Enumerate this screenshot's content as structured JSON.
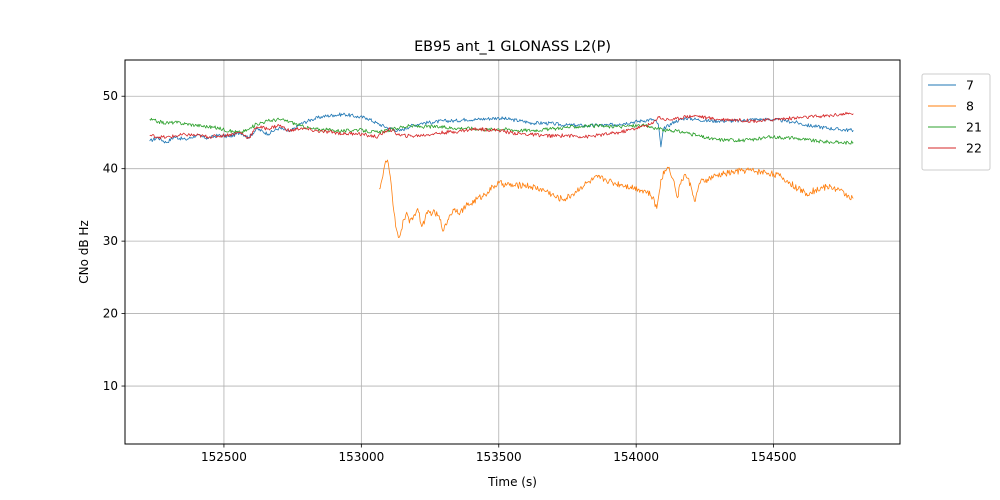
{
  "chart_data": {
    "type": "line",
    "title": "EB95 ant_1 GLONASS L2(P)",
    "xlabel": "Time (s)",
    "ylabel": "CNo dB Hz",
    "xlim": [
      152140,
      154960
    ],
    "ylim": [
      2,
      55
    ],
    "xticks": [
      152500,
      153000,
      153500,
      154000,
      154500
    ],
    "yticks": [
      10,
      20,
      30,
      40,
      50
    ],
    "grid": true,
    "legend_position": "outside top-right",
    "series": [
      {
        "name": "7",
        "color": "#1f77b4",
        "points": [
          [
            152230,
            43.8
          ],
          [
            152260,
            44.3
          ],
          [
            152290,
            43.6
          ],
          [
            152320,
            44.4
          ],
          [
            152360,
            44.0
          ],
          [
            152400,
            44.6
          ],
          [
            152440,
            44.2
          ],
          [
            152480,
            44.6
          ],
          [
            152520,
            44.4
          ],
          [
            152560,
            45.0
          ],
          [
            152590,
            44.3
          ],
          [
            152620,
            45.5
          ],
          [
            152660,
            44.8
          ],
          [
            152700,
            45.6
          ],
          [
            152740,
            45.1
          ],
          [
            152780,
            46.2
          ],
          [
            152820,
            46.8
          ],
          [
            152860,
            47.2
          ],
          [
            152900,
            47.4
          ],
          [
            152940,
            47.5
          ],
          [
            152980,
            47.2
          ],
          [
            153020,
            47.0
          ],
          [
            153060,
            46.2
          ],
          [
            153100,
            45.6
          ],
          [
            153140,
            45.2
          ],
          [
            153180,
            45.9
          ],
          [
            153220,
            46.3
          ],
          [
            153260,
            46.4
          ],
          [
            153300,
            46.6
          ],
          [
            153340,
            46.6
          ],
          [
            153380,
            46.8
          ],
          [
            153420,
            46.8
          ],
          [
            153460,
            46.9
          ],
          [
            153500,
            47.0
          ],
          [
            153540,
            46.8
          ],
          [
            153580,
            46.6
          ],
          [
            153620,
            46.3
          ],
          [
            153660,
            46.3
          ],
          [
            153700,
            46.2
          ],
          [
            153740,
            46.0
          ],
          [
            153780,
            46.0
          ],
          [
            153820,
            45.9
          ],
          [
            153860,
            46.0
          ],
          [
            153900,
            46.0
          ],
          [
            153940,
            46.2
          ],
          [
            153980,
            46.4
          ],
          [
            154020,
            46.6
          ],
          [
            154060,
            46.8
          ],
          [
            154080,
            46.2
          ],
          [
            154090,
            43.0
          ],
          [
            154100,
            45.5
          ],
          [
            154140,
            46.5
          ],
          [
            154180,
            47.0
          ],
          [
            154220,
            46.8
          ],
          [
            154260,
            46.6
          ],
          [
            154300,
            46.6
          ],
          [
            154340,
            46.6
          ],
          [
            154380,
            46.6
          ],
          [
            154420,
            46.8
          ],
          [
            154460,
            46.8
          ],
          [
            154500,
            46.8
          ],
          [
            154540,
            46.6
          ],
          [
            154580,
            46.4
          ],
          [
            154620,
            46.0
          ],
          [
            154660,
            45.8
          ],
          [
            154700,
            45.6
          ],
          [
            154740,
            45.4
          ],
          [
            154790,
            45.3
          ]
        ]
      },
      {
        "name": "8",
        "color": "#ff7f0e",
        "points": [
          [
            153065,
            37.2
          ],
          [
            153075,
            38.5
          ],
          [
            153085,
            40.5
          ],
          [
            153095,
            41.2
          ],
          [
            153105,
            39.0
          ],
          [
            153115,
            35.0
          ],
          [
            153125,
            32.0
          ],
          [
            153135,
            30.5
          ],
          [
            153145,
            31.5
          ],
          [
            153155,
            33.0
          ],
          [
            153165,
            34.0
          ],
          [
            153175,
            32.5
          ],
          [
            153190,
            33.5
          ],
          [
            153205,
            34.5
          ],
          [
            153220,
            32.0
          ],
          [
            153240,
            33.8
          ],
          [
            153260,
            34.0
          ],
          [
            153280,
            33.5
          ],
          [
            153300,
            31.5
          ],
          [
            153320,
            33.5
          ],
          [
            153340,
            34.5
          ],
          [
            153360,
            34.0
          ],
          [
            153380,
            34.8
          ],
          [
            153400,
            35.2
          ],
          [
            153420,
            35.8
          ],
          [
            153440,
            36.2
          ],
          [
            153460,
            36.8
          ],
          [
            153480,
            37.5
          ],
          [
            153500,
            38.0
          ],
          [
            153530,
            37.8
          ],
          [
            153560,
            37.6
          ],
          [
            153590,
            37.8
          ],
          [
            153620,
            37.5
          ],
          [
            153650,
            37.2
          ],
          [
            153680,
            36.8
          ],
          [
            153710,
            36.0
          ],
          [
            153740,
            35.8
          ],
          [
            153770,
            36.5
          ],
          [
            153800,
            37.5
          ],
          [
            153830,
            38.2
          ],
          [
            153860,
            38.8
          ],
          [
            153890,
            38.5
          ],
          [
            153920,
            38.0
          ],
          [
            153950,
            37.8
          ],
          [
            153980,
            37.5
          ],
          [
            154010,
            37.2
          ],
          [
            154040,
            36.8
          ],
          [
            154060,
            36.0
          ],
          [
            154075,
            34.5
          ],
          [
            154090,
            38.5
          ],
          [
            154105,
            39.8
          ],
          [
            154120,
            40.2
          ],
          [
            154135,
            38.5
          ],
          [
            154150,
            36.0
          ],
          [
            154165,
            38.5
          ],
          [
            154180,
            39.2
          ],
          [
            154200,
            37.5
          ],
          [
            154215,
            35.5
          ],
          [
            154230,
            38.0
          ],
          [
            154260,
            38.5
          ],
          [
            154290,
            39.0
          ],
          [
            154320,
            39.3
          ],
          [
            154350,
            39.5
          ],
          [
            154380,
            39.7
          ],
          [
            154410,
            39.8
          ],
          [
            154440,
            39.6
          ],
          [
            154470,
            39.5
          ],
          [
            154500,
            39.3
          ],
          [
            154530,
            38.8
          ],
          [
            154560,
            38.0
          ],
          [
            154590,
            37.2
          ],
          [
            154620,
            36.6
          ],
          [
            154650,
            37.0
          ],
          [
            154680,
            37.4
          ],
          [
            154710,
            37.5
          ],
          [
            154740,
            37.0
          ],
          [
            154770,
            36.3
          ],
          [
            154790,
            35.9
          ]
        ]
      },
      {
        "name": "21",
        "color": "#2ca02c",
        "points": [
          [
            152230,
            46.8
          ],
          [
            152260,
            46.5
          ],
          [
            152290,
            46.3
          ],
          [
            152320,
            46.4
          ],
          [
            152360,
            46.2
          ],
          [
            152400,
            46.0
          ],
          [
            152440,
            45.8
          ],
          [
            152480,
            45.6
          ],
          [
            152520,
            45.2
          ],
          [
            152560,
            45.0
          ],
          [
            152590,
            45.4
          ],
          [
            152620,
            46.2
          ],
          [
            152660,
            46.6
          ],
          [
            152700,
            46.8
          ],
          [
            152740,
            46.5
          ],
          [
            152780,
            45.9
          ],
          [
            152820,
            45.5
          ],
          [
            152860,
            45.4
          ],
          [
            152900,
            45.3
          ],
          [
            152940,
            45.2
          ],
          [
            152980,
            45.4
          ],
          [
            153020,
            45.2
          ],
          [
            153060,
            45.0
          ],
          [
            153100,
            45.3
          ],
          [
            153140,
            45.7
          ],
          [
            153180,
            45.9
          ],
          [
            153220,
            45.8
          ],
          [
            153260,
            45.8
          ],
          [
            153300,
            45.7
          ],
          [
            153340,
            45.6
          ],
          [
            153380,
            45.6
          ],
          [
            153420,
            45.5
          ],
          [
            153460,
            45.4
          ],
          [
            153500,
            45.5
          ],
          [
            153540,
            45.4
          ],
          [
            153580,
            45.3
          ],
          [
            153620,
            45.3
          ],
          [
            153660,
            45.4
          ],
          [
            153700,
            45.5
          ],
          [
            153740,
            45.7
          ],
          [
            153780,
            45.8
          ],
          [
            153820,
            45.9
          ],
          [
            153860,
            45.9
          ],
          [
            153900,
            45.8
          ],
          [
            153940,
            45.8
          ],
          [
            153980,
            45.9
          ],
          [
            154020,
            46.0
          ],
          [
            154060,
            45.7
          ],
          [
            154100,
            45.3
          ],
          [
            154140,
            45.2
          ],
          [
            154180,
            45.0
          ],
          [
            154220,
            44.6
          ],
          [
            154260,
            44.2
          ],
          [
            154300,
            44.0
          ],
          [
            154340,
            44.0
          ],
          [
            154380,
            43.9
          ],
          [
            154420,
            44.0
          ],
          [
            154460,
            44.2
          ],
          [
            154500,
            44.4
          ],
          [
            154540,
            44.3
          ],
          [
            154580,
            44.2
          ],
          [
            154620,
            44.0
          ],
          [
            154660,
            43.8
          ],
          [
            154700,
            43.7
          ],
          [
            154740,
            43.6
          ],
          [
            154790,
            43.6
          ]
        ]
      },
      {
        "name": "22",
        "color": "#d62728",
        "points": [
          [
            152230,
            44.6
          ],
          [
            152260,
            44.4
          ],
          [
            152290,
            44.3
          ],
          [
            152320,
            44.5
          ],
          [
            152360,
            44.7
          ],
          [
            152400,
            44.6
          ],
          [
            152440,
            44.4
          ],
          [
            152480,
            44.5
          ],
          [
            152520,
            44.7
          ],
          [
            152560,
            45.0
          ],
          [
            152590,
            44.2
          ],
          [
            152620,
            45.8
          ],
          [
            152660,
            45.5
          ],
          [
            152700,
            46.0
          ],
          [
            152740,
            45.2
          ],
          [
            152780,
            45.6
          ],
          [
            152820,
            45.3
          ],
          [
            152860,
            45.1
          ],
          [
            152900,
            45.0
          ],
          [
            152940,
            44.8
          ],
          [
            152980,
            44.9
          ],
          [
            153020,
            44.6
          ],
          [
            153060,
            44.4
          ],
          [
            153100,
            45.5
          ],
          [
            153140,
            44.6
          ],
          [
            153180,
            44.5
          ],
          [
            153220,
            44.6
          ],
          [
            153260,
            44.8
          ],
          [
            153300,
            45.0
          ],
          [
            153340,
            45.1
          ],
          [
            153380,
            45.3
          ],
          [
            153420,
            45.5
          ],
          [
            153460,
            45.4
          ],
          [
            153500,
            45.3
          ],
          [
            153540,
            45.0
          ],
          [
            153580,
            44.8
          ],
          [
            153620,
            44.7
          ],
          [
            153660,
            44.6
          ],
          [
            153700,
            44.5
          ],
          [
            153740,
            44.6
          ],
          [
            153780,
            44.5
          ],
          [
            153820,
            44.4
          ],
          [
            153860,
            44.6
          ],
          [
            153900,
            44.8
          ],
          [
            153940,
            45.0
          ],
          [
            153980,
            45.4
          ],
          [
            154020,
            45.8
          ],
          [
            154060,
            46.2
          ],
          [
            154080,
            47.2
          ],
          [
            154100,
            46.8
          ],
          [
            154140,
            46.8
          ],
          [
            154180,
            47.2
          ],
          [
            154220,
            47.3
          ],
          [
            154260,
            47.0
          ],
          [
            154300,
            46.8
          ],
          [
            154340,
            46.8
          ],
          [
            154380,
            46.7
          ],
          [
            154420,
            46.6
          ],
          [
            154460,
            46.6
          ],
          [
            154500,
            46.8
          ],
          [
            154540,
            46.9
          ],
          [
            154580,
            47.0
          ],
          [
            154620,
            47.1
          ],
          [
            154660,
            47.2
          ],
          [
            154700,
            47.3
          ],
          [
            154740,
            47.5
          ],
          [
            154790,
            47.6
          ]
        ]
      }
    ]
  }
}
